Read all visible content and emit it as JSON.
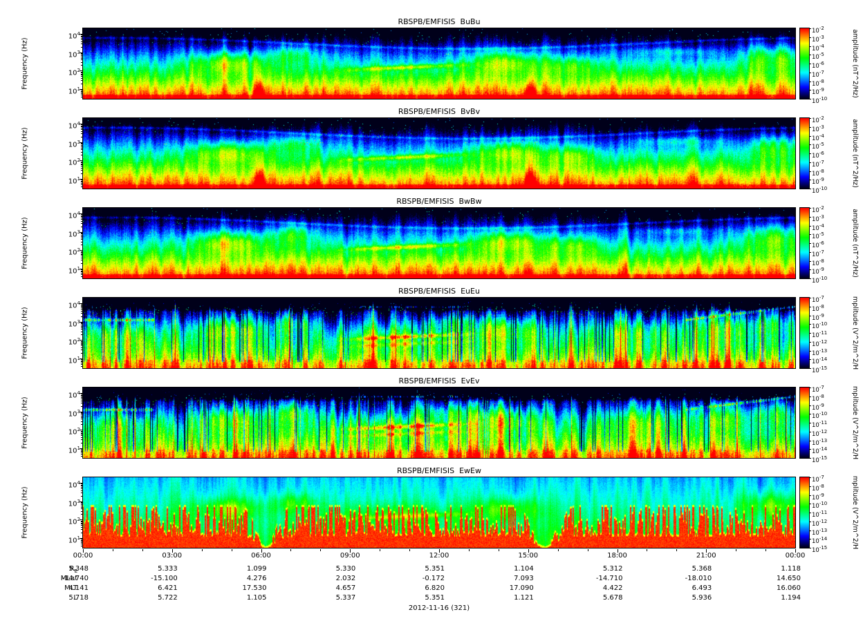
{
  "figure": {
    "date_label": "2012-11-16 (321)",
    "background": "#ffffff",
    "axis_color": "#000000",
    "tick_base": "10",
    "palette": {
      "max": "#ff0000",
      "high": "#ffff00",
      "mid": "#00ff00",
      "low": "#00ffff",
      "min": "#0000ff",
      "floor": "#00001a"
    }
  },
  "time_axis": {
    "tick_labels": [
      "00:00",
      "03:00",
      "06:00",
      "09:00",
      "12:00",
      "15:00",
      "18:00",
      "21:00",
      "00:00"
    ],
    "major_tick_hours": 3,
    "minor_tick_hours": 1,
    "range_hours": [
      0,
      24
    ]
  },
  "ephemeris": {
    "rows": [
      {
        "label": "R",
        "sub": "E",
        "values": [
          "5.348",
          "5.333",
          "1.099",
          "5.330",
          "5.351",
          "1.104",
          "5.312",
          "5.368",
          "1.118"
        ]
      },
      {
        "label": "MLat",
        "values": [
          "-14.740",
          "-15.100",
          "4.276",
          "2.032",
          "-0.172",
          "7.093",
          "-14.710",
          "-18.010",
          "14.650"
        ]
      },
      {
        "label": "MLT",
        "values": [
          "4.141",
          "6.421",
          "17.530",
          "4.657",
          "6.820",
          "17.090",
          "4.422",
          "6.493",
          "16.060"
        ]
      },
      {
        "label": "L",
        "values": [
          "5.718",
          "5.722",
          "1.105",
          "5.337",
          "5.351",
          "1.121",
          "5.678",
          "5.936",
          "1.194"
        ]
      }
    ]
  },
  "chart_data": [
    {
      "id": "BuBu",
      "type": "heatmap",
      "title": "RBSPB/EMFISIS  BuBu",
      "ylabel": "Frequency (Hz)",
      "y_scale": "log",
      "ylim_hz": [
        3,
        20000
      ],
      "y_tick_exponents": [
        4,
        3,
        2,
        1
      ],
      "xlim_hours": [
        0,
        24
      ],
      "x_axis": "time (UT), shared bottom axis",
      "style": "bfield",
      "seed": 11,
      "burst_amp": 0.5,
      "colorbar": {
        "label": "amplitude (nT^2/Hz)",
        "scale": "log",
        "tick_exponents": [
          -2,
          -3,
          -4,
          -5,
          -6,
          -7,
          -8,
          -9,
          -10
        ]
      },
      "features": "Broadband red band below ~10 Hz; impulsive bursts reaching ~100 Hz near 06:00 and 15:00 UT; diffuse green emission 100-2000 Hz near 04-07, 13-15 and 22-24 UT; narrow rising tone 150-400 Hz from 08:30-13:00 UT; weak/black above ~2 kHz"
    },
    {
      "id": "BvBv",
      "type": "heatmap",
      "title": "RBSPB/EMFISIS  BvBv",
      "ylabel": "Frequency (Hz)",
      "y_scale": "log",
      "ylim_hz": [
        3,
        20000
      ],
      "y_tick_exponents": [
        4,
        3,
        2,
        1
      ],
      "xlim_hours": [
        0,
        24
      ],
      "x_axis": "time (UT), shared bottom axis",
      "style": "bfield",
      "seed": 22,
      "burst_amp": 0.55,
      "colorbar": {
        "label": "amplitude (nT^2/Hz)",
        "scale": "log",
        "tick_exponents": [
          -2,
          -3,
          -4,
          -5,
          -6,
          -7,
          -8,
          -9,
          -10
        ]
      },
      "features": "Same morphology as BuBu: red low-frequency band, bursts at 06:00 and 15:00 UT, green mid-frequency patches, narrow band 08:30-13:00 UT"
    },
    {
      "id": "BwBw",
      "type": "heatmap",
      "title": "RBSPB/EMFISIS  BwBw",
      "ylabel": "Frequency (Hz)",
      "y_scale": "log",
      "ylim_hz": [
        3,
        20000
      ],
      "y_tick_exponents": [
        4,
        3,
        2,
        1
      ],
      "xlim_hours": [
        0,
        24
      ],
      "x_axis": "time (UT), shared bottom axis",
      "style": "bfield",
      "seed": 33,
      "burst_amp": 0.12,
      "colorbar": {
        "label": "amplitude (nT^2/Hz)",
        "scale": "log",
        "tick_exponents": [
          -2,
          -3,
          -4,
          -5,
          -6,
          -7,
          -8,
          -9,
          -10
        ]
      },
      "features": "Similar to BuBu/BvBv but without the strong red bursts at 06:00/15:00; uniform orange low-frequency floor, green patches 100-2000 Hz"
    },
    {
      "id": "EuEu",
      "type": "heatmap",
      "title": "RBSPB/EMFISIS  EuEu",
      "ylabel": "Frequency (Hz)",
      "y_scale": "log",
      "ylim_hz": [
        3,
        20000
      ],
      "y_tick_exponents": [
        4,
        3,
        2,
        1
      ],
      "xlim_hours": [
        0,
        24
      ],
      "x_axis": "time (UT), shared bottom axis",
      "style": "efield",
      "seed": 44,
      "burst_amp": 0,
      "colorbar": {
        "label": "mplitude (V^2/m^2/H",
        "scale": "log",
        "tick_exponents": [
          -7,
          -8,
          -9,
          -10,
          -11,
          -12,
          -13,
          -14,
          -15
        ]
      },
      "features": "Structured broadband electric field with strong vertical striping and dropout columns; green patches 100-3000 Hz; narrow band 150-400 Hz 08:30-13:00 UT; red narrowband dashes near 1-6 kHz at day start/end and 09-13 UT; speckled dark region above ~3 kHz"
    },
    {
      "id": "EvEv",
      "type": "heatmap",
      "title": "RBSPB/EMFISIS  EvEv",
      "ylabel": "Frequency (Hz)",
      "y_scale": "log",
      "ylim_hz": [
        3,
        20000
      ],
      "y_tick_exponents": [
        4,
        3,
        2,
        1
      ],
      "xlim_hours": [
        0,
        24
      ],
      "x_axis": "time (UT), shared bottom axis",
      "style": "efield",
      "seed": 55,
      "burst_amp": 0,
      "colorbar": {
        "label": "mplitude (V^2/m^2/H",
        "scale": "log",
        "tick_exponents": [
          -7,
          -8,
          -9,
          -10,
          -11,
          -12,
          -13,
          -14,
          -15
        ]
      },
      "features": "Same morphology as EuEu: striped broadband emission, green patches, narrow rising band 08:30-13:00 UT, red dashes near upper hybrid band"
    },
    {
      "id": "EwEw",
      "type": "heatmap",
      "title": "RBSPB/EMFISIS  EwEw",
      "ylabel": "Frequency (Hz)",
      "y_scale": "log",
      "ylim_hz": [
        3,
        20000
      ],
      "y_tick_exponents": [
        4,
        3,
        2,
        1
      ],
      "xlim_hours": [
        0,
        24
      ],
      "x_axis": "time (UT), shared bottom axis",
      "style": "ew",
      "seed": 66,
      "burst_amp": 0,
      "colorbar": {
        "label": "mplitude (V^2/m^2/H",
        "scale": "log",
        "tick_exponents": [
          -7,
          -8,
          -9,
          -10,
          -11,
          -12,
          -13,
          -14,
          -15
        ]
      },
      "features": "Saturated red interference comb from the bottom up to ~30-300 Hz all day, absent in gaps near 06:00 and 15:30 UT; smooth cyan/green background above with green patches near 04-07, 13-15 and 22-24 UT"
    }
  ]
}
